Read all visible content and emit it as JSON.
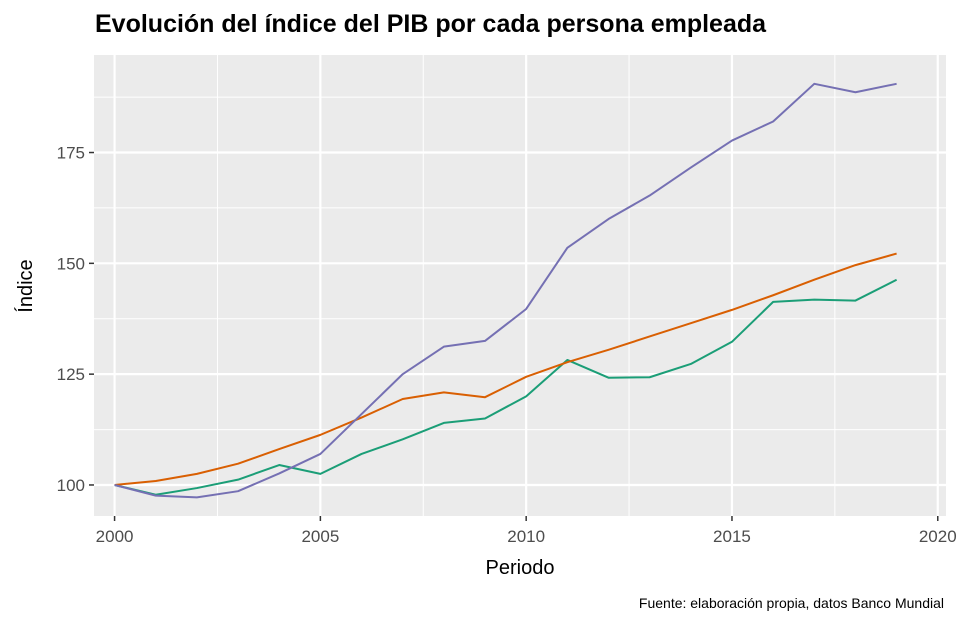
{
  "chart_data": {
    "type": "line",
    "title": "Evolución del índice del PIB por cada persona empleada",
    "xlabel": "Periodo",
    "ylabel": "Índice",
    "caption": "Fuente: elaboración propia, datos Banco Mundial",
    "xlim": [
      1999.5,
      2020.2
    ],
    "ylim": [
      93,
      197
    ],
    "x_ticks": [
      2000,
      2005,
      2010,
      2015,
      2020
    ],
    "y_ticks": [
      100,
      125,
      150,
      175
    ],
    "x_tick_labels": [
      "2000",
      "2005",
      "2010",
      "2015",
      "2020"
    ],
    "y_tick_labels": [
      "100",
      "125",
      "150",
      "175"
    ],
    "grid": true,
    "legend": "none",
    "series": [
      {
        "color": "#1b9e77",
        "x": [
          2000,
          2001,
          2002,
          2003,
          2004,
          2005,
          2006,
          2007,
          2008,
          2009,
          2010,
          2011,
          2012,
          2013,
          2014,
          2015,
          2016,
          2017,
          2018,
          2019
        ],
        "values": [
          100,
          97.8,
          99.3,
          101.2,
          104.5,
          102.5,
          107,
          110.3,
          114,
          115,
          120,
          128.2,
          124.2,
          124.3,
          127.3,
          132.3,
          141.3,
          141.8,
          141.6,
          146.3
        ]
      },
      {
        "color": "#d95f02",
        "x": [
          2000,
          2001,
          2002,
          2003,
          2004,
          2005,
          2006,
          2007,
          2008,
          2009,
          2010,
          2011,
          2012,
          2013,
          2014,
          2015,
          2016,
          2017,
          2018,
          2019
        ],
        "values": [
          100,
          100.9,
          102.5,
          104.8,
          108.1,
          111.3,
          115.2,
          119.4,
          120.9,
          119.8,
          124.4,
          127.7,
          130.5,
          133.5,
          136.5,
          139.5,
          142.8,
          146.3,
          149.6,
          152.2
        ]
      },
      {
        "color": "#7570b3",
        "x": [
          2000,
          2001,
          2002,
          2003,
          2004,
          2005,
          2006,
          2007,
          2008,
          2009,
          2010,
          2011,
          2012,
          2013,
          2014,
          2015,
          2016,
          2017,
          2018,
          2019
        ],
        "values": [
          100,
          97.6,
          97.2,
          98.6,
          102.6,
          107,
          116,
          125,
          131.2,
          132.5,
          139.7,
          153.5,
          160,
          165.3,
          171.6,
          177.7,
          182,
          190.5,
          188.6,
          190.5
        ]
      }
    ]
  }
}
